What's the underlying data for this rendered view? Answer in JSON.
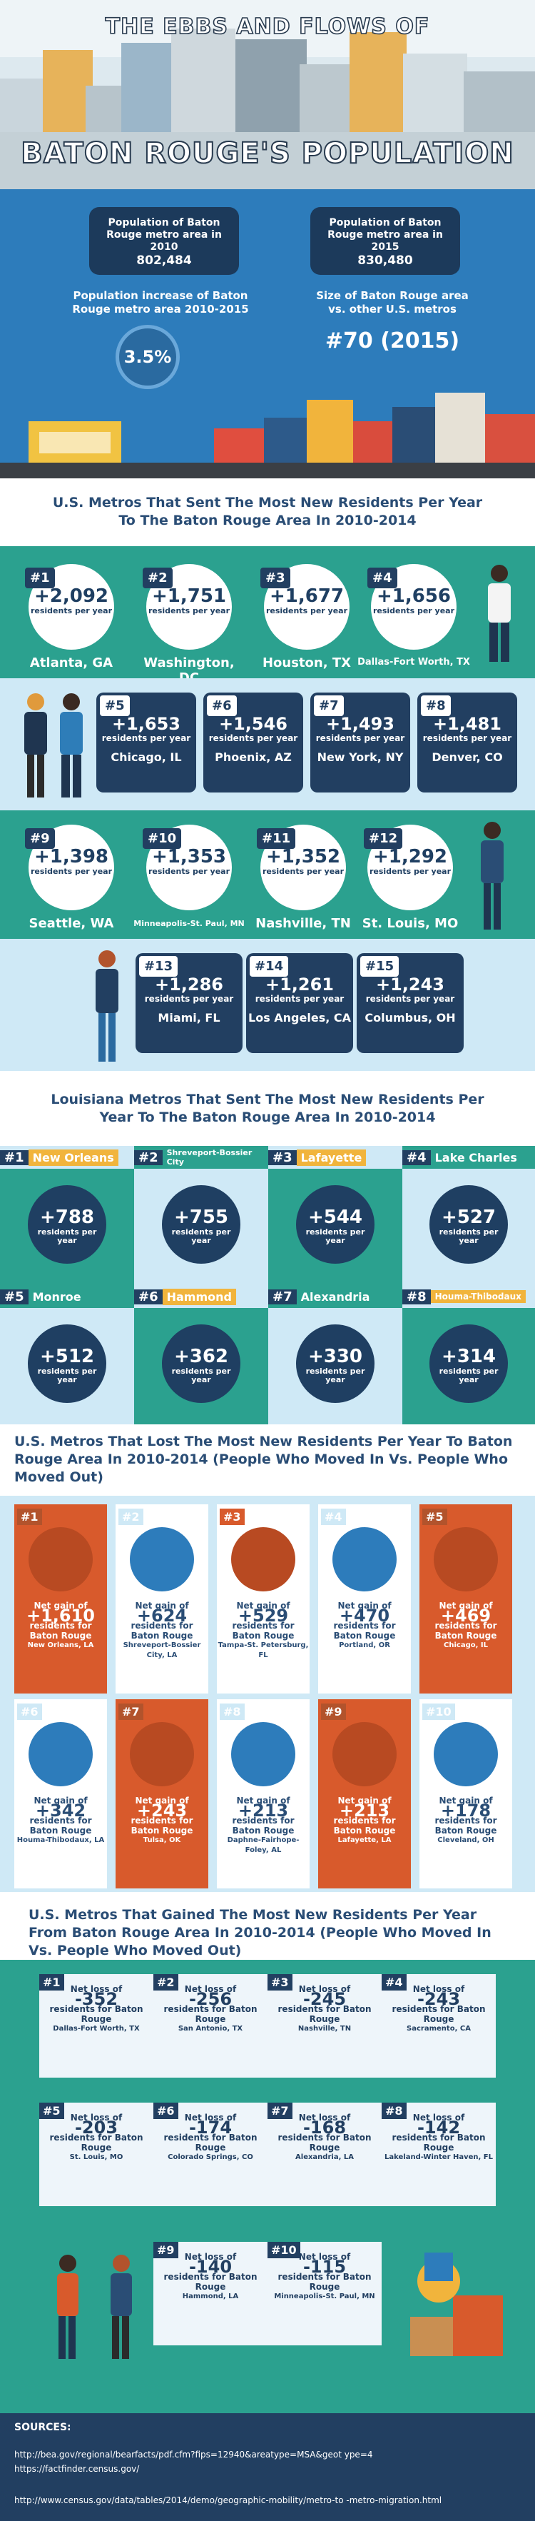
{
  "header": {
    "title_line1": "THE EBBS AND FLOWS OF",
    "title_line2": "BATON ROUGE'S POPULATION"
  },
  "stats": {
    "pop2010_label": "Population of Baton Rouge metro area in 2010",
    "pop2010_value": "802,484",
    "pop2015_label": "Population of Baton Rouge metro area in 2015",
    "pop2015_value": "830,480",
    "increase_label": "Population increase of Baton Rouge metro area 2010-2015",
    "increase_value": "3.5%",
    "size_label": "Size of Baton Rouge area vs. other U.S. metros",
    "size_value": "#70 (2015)"
  },
  "sent_metros": {
    "title": "U.S. Metros That Sent The Most New Residents Per Year To The Baton Rouge Area In 2010-2014",
    "unit": "residents per year",
    "items": [
      {
        "rank": "#1",
        "value": "+2,092",
        "city": "Atlanta, GA"
      },
      {
        "rank": "#2",
        "value": "+1,751",
        "city": "Washington, DC"
      },
      {
        "rank": "#3",
        "value": "+1,677",
        "city": "Houston, TX"
      },
      {
        "rank": "#4",
        "value": "+1,656",
        "city": "Dallas-Fort Worth, TX"
      },
      {
        "rank": "#5",
        "value": "+1,653",
        "city": "Chicago, IL"
      },
      {
        "rank": "#6",
        "value": "+1,546",
        "city": "Phoenix, AZ"
      },
      {
        "rank": "#7",
        "value": "+1,493",
        "city": "New York, NY"
      },
      {
        "rank": "#8",
        "value": "+1,481",
        "city": "Denver, CO"
      },
      {
        "rank": "#9",
        "value": "+1,398",
        "city": "Seattle, WA"
      },
      {
        "rank": "#10",
        "value": "+1,353",
        "city": "Minneapolis-St. Paul, MN"
      },
      {
        "rank": "#11",
        "value": "+1,352",
        "city": "Nashville, TN"
      },
      {
        "rank": "#12",
        "value": "+1,292",
        "city": "St. Louis, MO"
      },
      {
        "rank": "#13",
        "value": "+1,286",
        "city": "Miami, FL"
      },
      {
        "rank": "#14",
        "value": "+1,261",
        "city": "Los Angeles, CA"
      },
      {
        "rank": "#15",
        "value": "+1,243",
        "city": "Columbus, OH"
      }
    ]
  },
  "louisiana": {
    "title": "Louisiana Metros That Sent The Most New Residents Per Year To The Baton Rouge Area In 2010-2014",
    "unit": "residents per year",
    "items": [
      {
        "rank": "#1",
        "name": "New Orleans",
        "value": "+788"
      },
      {
        "rank": "#2",
        "name": "Shreveport-Bossier City",
        "value": "+755"
      },
      {
        "rank": "#3",
        "name": "Lafayette",
        "value": "+544"
      },
      {
        "rank": "#4",
        "name": "Lake Charles",
        "value": "+527"
      },
      {
        "rank": "#5",
        "name": "Monroe",
        "value": "+512"
      },
      {
        "rank": "#6",
        "name": "Hammond",
        "value": "+362"
      },
      {
        "rank": "#7",
        "name": "Alexandria",
        "value": "+330"
      },
      {
        "rank": "#8",
        "name": "Houma-Thibodaux",
        "value": "+314"
      }
    ]
  },
  "lost": {
    "title": "U.S. Metros That Lost The Most New Residents Per Year To Baton Rouge Area In 2010-2014 (People Who Moved In Vs. People Who Moved Out)",
    "pre": "Net gain of",
    "post": "residents for Baton Rouge",
    "items": [
      {
        "rank": "#1",
        "value": "+1,610",
        "city": "New Orleans, LA"
      },
      {
        "rank": "#2",
        "value": "+624",
        "city": "Shreveport-Bossier City, LA"
      },
      {
        "rank": "#3",
        "value": "+529",
        "city": "Tampa-St. Petersburg, FL"
      },
      {
        "rank": "#4",
        "value": "+470",
        "city": "Portland, OR"
      },
      {
        "rank": "#5",
        "value": "+469",
        "city": "Chicago, IL"
      },
      {
        "rank": "#6",
        "value": "+342",
        "city": "Houma-Thibodaux, LA"
      },
      {
        "rank": "#7",
        "value": "+243",
        "city": "Tulsa, OK"
      },
      {
        "rank": "#8",
        "value": "+213",
        "city": "Daphne-Fairhope-Foley, AL"
      },
      {
        "rank": "#9",
        "value": "+213",
        "city": "Lafayette, LA"
      },
      {
        "rank": "#10",
        "value": "+178",
        "city": "Cleveland, OH"
      }
    ]
  },
  "gained": {
    "title": "U.S. Metros That Gained The Most New Residents Per Year From Baton Rouge Area In 2010-2014 (People Who Moved In Vs. People Who Moved Out)",
    "pre": "Net loss of",
    "post": "residents for Baton Rouge",
    "items": [
      {
        "rank": "#1",
        "value": "-352",
        "city": "Dallas-Fort Worth, TX"
      },
      {
        "rank": "#2",
        "value": "-256",
        "city": "San Antonio, TX"
      },
      {
        "rank": "#3",
        "value": "-245",
        "city": "Nashville, TN"
      },
      {
        "rank": "#4",
        "value": "-243",
        "city": "Sacramento, CA"
      },
      {
        "rank": "#5",
        "value": "-203",
        "city": "St. Louis, MO"
      },
      {
        "rank": "#6",
        "value": "-174",
        "city": "Colorado Springs, CO"
      },
      {
        "rank": "#7",
        "value": "-168",
        "city": "Alexandria, LA"
      },
      {
        "rank": "#8",
        "value": "-142",
        "city": "Lakeland-Winter Haven, FL"
      },
      {
        "rank": "#9",
        "value": "-140",
        "city": "Hammond, LA"
      },
      {
        "rank": "#10",
        "value": "-115",
        "city": "Minneapolis-St. Paul, MN"
      }
    ]
  },
  "sources": {
    "title": "SOURCES:",
    "lines": [
      "http://bea.gov/regional/bearfacts/pdf.cfm?fips=12940&areatype=MSA&geot ype=4",
      "https://factfinder.census.gov/",
      "http://www.census.gov/data/tables/2014/demo/geographic-mobility/metro-to -metro-migration.html"
    ]
  }
}
